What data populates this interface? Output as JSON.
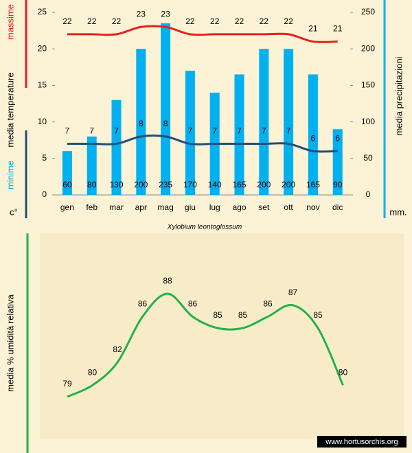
{
  "chart_data": [
    {
      "type": "bar_line",
      "categories": [
        "gen",
        "feb",
        "mar",
        "apr",
        "mag",
        "giu",
        "lug",
        "ago",
        "set",
        "ott",
        "nov",
        "dic"
      ],
      "series": [
        {
          "name": "media precipitazioni",
          "kind": "bar",
          "axis": "y2",
          "color": "#00b0f0",
          "values": [
            60,
            80,
            130,
            200,
            235,
            170,
            140,
            165,
            200,
            200,
            165,
            90
          ]
        },
        {
          "name": "massime",
          "kind": "line",
          "color": "#e8201c",
          "values": [
            22,
            22,
            22,
            23,
            23,
            22,
            22,
            22,
            22,
            22,
            21,
            21
          ]
        },
        {
          "name": "minime",
          "kind": "line",
          "color": "#1f4e79",
          "values": [
            7,
            7,
            7,
            8,
            8,
            7,
            7,
            7,
            7,
            7,
            6,
            6
          ]
        }
      ],
      "ylabel": "media  temperature",
      "ymax_label": "massime",
      "ymin_label": "minime",
      "yunit": "c°",
      "y2label": "media  precipitazioni",
      "y2unit": "mm.",
      "ylim": [
        0,
        25
      ],
      "yticks": [
        0,
        5,
        10,
        15,
        20,
        25
      ],
      "y2lim": [
        0,
        250
      ],
      "y2ticks": [
        0,
        50,
        100,
        150,
        200,
        250
      ],
      "caption": "Xylobium  leontoglossum"
    },
    {
      "type": "line",
      "categories": [
        null,
        null,
        null,
        null,
        null,
        null,
        null,
        null,
        null,
        null,
        null,
        null
      ],
      "series": [
        {
          "name": "media % umidità relativa",
          "color": "#22b14c",
          "values": [
            79,
            80,
            82,
            86,
            88,
            86,
            85,
            85,
            86,
            87,
            85,
            80
          ]
        }
      ],
      "ylabel": "media %  umidità relativa",
      "watermark": "www.hortusorchis.org"
    }
  ]
}
